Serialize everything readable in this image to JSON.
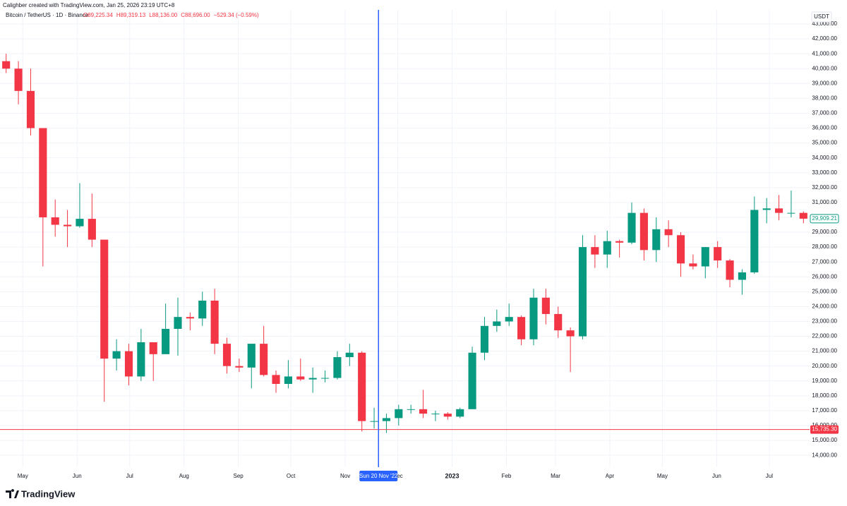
{
  "chart_data": {
    "type": "candlestick",
    "credit": "Calighber created with TradingView.com, Jan 25, 2026 23:19 UTC+8",
    "symbol": "Bitcoin / TetherUS · 1D · Binance",
    "ohlc_labels": [
      "O89,225.34",
      "H89,319.13",
      "L88,136.00",
      "C88,696.00",
      "−529.34 (−0.59%)"
    ],
    "currency": "USDT",
    "brand": "TradingView",
    "up_color": "#089981",
    "down_color": "#f23645",
    "grid": true,
    "x": [
      "2022-04-18",
      "2022-04-25",
      "2022-05-02",
      "2022-05-09",
      "2022-05-16",
      "2022-05-23",
      "2022-05-30",
      "2022-06-06",
      "2022-06-13",
      "2022-06-20",
      "2022-06-27",
      "2022-07-04",
      "2022-07-11",
      "2022-07-18",
      "2022-07-25",
      "2022-08-01",
      "2022-08-08",
      "2022-08-15",
      "2022-08-22",
      "2022-08-29",
      "2022-09-05",
      "2022-09-12",
      "2022-09-19",
      "2022-09-26",
      "2022-10-03",
      "2022-10-10",
      "2022-10-17",
      "2022-10-24",
      "2022-10-31",
      "2022-11-07",
      "2022-11-14",
      "2022-11-21",
      "2022-11-28",
      "2022-12-05",
      "2022-12-12",
      "2022-12-19",
      "2022-12-26",
      "2023-01-02",
      "2023-01-09",
      "2023-01-16",
      "2023-01-23",
      "2023-01-30",
      "2023-02-06",
      "2023-02-13",
      "2023-02-20",
      "2023-02-27",
      "2023-03-06",
      "2023-03-13",
      "2023-03-20",
      "2023-03-27",
      "2023-04-03",
      "2023-04-10",
      "2023-04-17",
      "2023-04-24",
      "2023-05-01",
      "2023-05-08",
      "2023-05-15",
      "2023-05-22",
      "2023-05-29",
      "2023-06-05",
      "2023-06-12",
      "2023-06-19",
      "2023-06-26",
      "2023-07-03",
      "2023-07-10",
      "2023-07-17"
    ],
    "open": [
      40500,
      40000,
      38500,
      36000,
      30000,
      29500,
      29400,
      29900,
      28500,
      20500,
      21000,
      19300,
      21600,
      20800,
      22500,
      23300,
      23200,
      24400,
      21500,
      20000,
      19900,
      21500,
      19400,
      18800,
      19300,
      19100,
      19200,
      19200,
      20600,
      20900,
      16300,
      16300,
      16500,
      17100,
      17100,
      16800,
      16800,
      16600,
      17100,
      20900,
      22700,
      23000,
      23300,
      21800,
      24600,
      23500,
      22400,
      22000,
      28000,
      27500,
      28400,
      28300,
      30300,
      27800,
      29200,
      28800,
      26900,
      26700,
      28000,
      27100,
      25800,
      26300,
      30500,
      30600,
      30300,
      30300
    ],
    "high": [
      41000,
      40500,
      40000,
      36000,
      31200,
      30500,
      32300,
      31600,
      28500,
      21800,
      21500,
      22500,
      21600,
      24200,
      24600,
      23600,
      25000,
      25200,
      21900,
      20500,
      21500,
      22700,
      19700,
      20400,
      20500,
      19900,
      19700,
      21000,
      21500,
      21000,
      17200,
      16800,
      17400,
      17400,
      18400,
      17000,
      16900,
      17200,
      21300,
      23300,
      23800,
      24200,
      23400,
      25200,
      25200,
      24000,
      22600,
      28800,
      28800,
      29100,
      28500,
      31000,
      30600,
      30000,
      29800,
      29000,
      27500,
      28000,
      28400,
      27200,
      26500,
      31400,
      31300,
      31500,
      31800,
      30400
    ],
    "low": [
      39700,
      37600,
      35500,
      26700,
      28700,
      28000,
      29300,
      28000,
      17600,
      19700,
      18700,
      19000,
      19000,
      20800,
      20700,
      22400,
      22700,
      20800,
      19500,
      19600,
      18500,
      19300,
      18200,
      18500,
      19000,
      18200,
      18900,
      19100,
      20000,
      15600,
      15800,
      15500,
      16000,
      16800,
      16500,
      16300,
      16400,
      16500,
      17100,
      20400,
      22300,
      22700,
      21400,
      21400,
      22800,
      21900,
      19600,
      21800,
      26600,
      26600,
      27300,
      28200,
      27100,
      27000,
      28000,
      26000,
      26500,
      25900,
      26600,
      25300,
      24800,
      26200,
      29600,
      29800,
      30000,
      29600
    ],
    "close": [
      40000,
      38500,
      36000,
      30000,
      29500,
      29400,
      29900,
      28500,
      20500,
      21000,
      19300,
      21600,
      20800,
      22500,
      23300,
      23200,
      24400,
      21500,
      20000,
      19900,
      21500,
      19400,
      18800,
      19300,
      19100,
      19200,
      19200,
      20600,
      20900,
      16300,
      16300,
      16500,
      17100,
      17100,
      16800,
      16800,
      16600,
      17100,
      20900,
      22700,
      23000,
      23300,
      21800,
      24600,
      23500,
      22400,
      22000,
      28000,
      27500,
      28400,
      28300,
      30300,
      27800,
      29200,
      28800,
      26900,
      26700,
      28000,
      27100,
      25800,
      26300,
      30500,
      30600,
      30300,
      30300,
      29909.21
    ],
    "xlim": [
      "2022-04-18",
      "2023-07-24"
    ],
    "ylim": [
      13200,
      43950
    ],
    "xticks": [
      {
        "value": "2022-05-01",
        "label": "May"
      },
      {
        "value": "2022-06-01",
        "label": "Jun"
      },
      {
        "value": "2022-07-01",
        "label": "Jul"
      },
      {
        "value": "2022-08-01",
        "label": "Aug"
      },
      {
        "value": "2022-09-01",
        "label": "Sep"
      },
      {
        "value": "2022-10-01",
        "label": "Oct"
      },
      {
        "value": "2022-11-01",
        "label": "Nov"
      },
      {
        "value": "2022-12-01",
        "label": "Dec"
      },
      {
        "value": "2023-01-01",
        "label": "2023"
      },
      {
        "value": "2023-02-01",
        "label": "Feb"
      },
      {
        "value": "2023-03-01",
        "label": "Mar"
      },
      {
        "value": "2023-04-01",
        "label": "Apr"
      },
      {
        "value": "2023-05-01",
        "label": "May"
      },
      {
        "value": "2023-06-01",
        "label": "Jun"
      },
      {
        "value": "2023-07-01",
        "label": "Jul"
      }
    ],
    "yticks": [
      {
        "value": 14000,
        "label": "14,000.00"
      },
      {
        "value": 15000,
        "label": "15,000.00"
      },
      {
        "value": 16000,
        "label": "16,000.00"
      },
      {
        "value": 17000,
        "label": "17,000.00"
      },
      {
        "value": 18000,
        "label": "18,000.00"
      },
      {
        "value": 19000,
        "label": "19,000.00"
      },
      {
        "value": 20000,
        "label": "20,000.00"
      },
      {
        "value": 21000,
        "label": "21,000.00"
      },
      {
        "value": 22000,
        "label": "22,000.00"
      },
      {
        "value": 23000,
        "label": "23,000.00"
      },
      {
        "value": 24000,
        "label": "24,000.00"
      },
      {
        "value": 25000,
        "label": "25,000.00"
      },
      {
        "value": 26000,
        "label": "26,000.00"
      },
      {
        "value": 27000,
        "label": "27,000.00"
      },
      {
        "value": 28000,
        "label": "28,000.00"
      },
      {
        "value": 29000,
        "label": "29,000.00"
      },
      {
        "value": 30000,
        "label": "30,000.00"
      },
      {
        "value": 31000,
        "label": "31,000.00"
      },
      {
        "value": 32000,
        "label": "32,000.00"
      },
      {
        "value": 33000,
        "label": "33,000.00"
      },
      {
        "value": 34000,
        "label": "34,000.00"
      },
      {
        "value": 35000,
        "label": "35,000.00"
      },
      {
        "value": 36000,
        "label": "36,000.00"
      },
      {
        "value": 37000,
        "label": "37,000.00"
      },
      {
        "value": 38000,
        "label": "38,000.00"
      },
      {
        "value": 39000,
        "label": "39,000.00"
      },
      {
        "value": 40000,
        "label": "40,000.00"
      },
      {
        "value": 41000,
        "label": "41,000.00"
      },
      {
        "value": 42000,
        "label": "42,000.00"
      },
      {
        "value": 43000,
        "label": "43,000.00"
      }
    ],
    "last_price": {
      "value": 29909.21,
      "label": "29,909.21"
    },
    "price_line": {
      "value": 15735.3,
      "label": "15,735.30"
    },
    "crosshair": {
      "value": "2022-11-20",
      "label": "Sun 20 Nov '22"
    }
  }
}
